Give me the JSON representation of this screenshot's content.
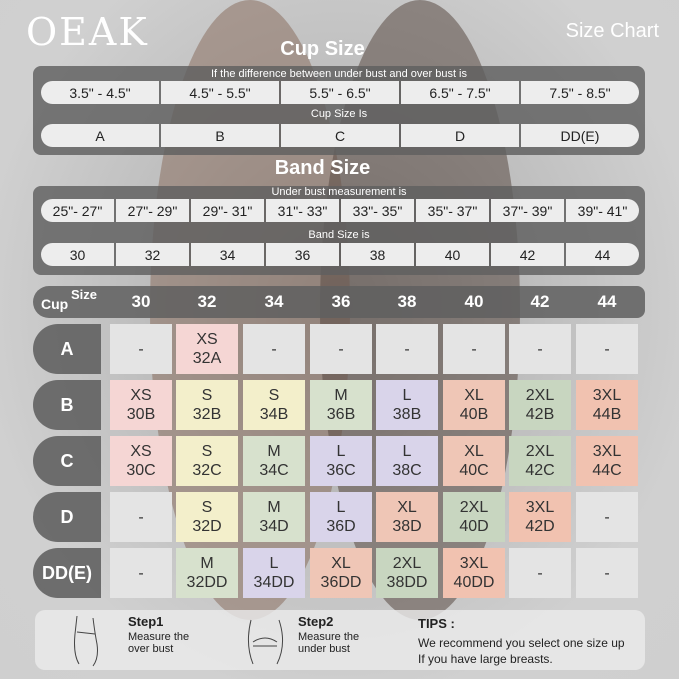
{
  "brand": {
    "logo": "OEAK",
    "subtitle": "Size Chart"
  },
  "cup_section": {
    "title": "Cup Size",
    "difference_label": "If the  difference between under bust and over bust is",
    "differences": [
      "3.5\" -  4.5\"",
      "4.5\" -  5.5\"",
      "5.5\" -  6.5\"",
      "6.5\" -  7.5\"",
      "7.5\" -  8.5\""
    ],
    "cup_label": "Cup Size Is",
    "cups": [
      "A",
      "B",
      "C",
      "D",
      "DD(E)"
    ]
  },
  "band_section": {
    "title": "Band Size",
    "measure_label": "Under bust measurement is",
    "measures": [
      "25\"- 27\"",
      "27\"- 29\"",
      "29\"- 31\"",
      "31\"- 33\"",
      "33\"- 35\"",
      "35\"- 37\"",
      "37\"- 39\"",
      "39\"- 41\""
    ],
    "band_label": "Band Size is",
    "bands": [
      "30",
      "32",
      "34",
      "36",
      "38",
      "40",
      "42",
      "44"
    ]
  },
  "matrix": {
    "corner_cup": "Cup",
    "corner_size": "Size",
    "columns": [
      "30",
      "32",
      "34",
      "36",
      "38",
      "40",
      "42",
      "44"
    ],
    "rows": [
      {
        "cup": "A",
        "cells": [
          [
            "-",
            ""
          ],
          [
            "XS",
            "32A"
          ],
          [
            "-",
            ""
          ],
          [
            "-",
            ""
          ],
          [
            "-",
            ""
          ],
          [
            "-",
            ""
          ],
          [
            "-",
            ""
          ],
          [
            "-",
            ""
          ]
        ]
      },
      {
        "cup": "B",
        "cells": [
          [
            "XS",
            "30B"
          ],
          [
            "S",
            "32B"
          ],
          [
            "S",
            "34B"
          ],
          [
            "M",
            "36B"
          ],
          [
            "L",
            "38B"
          ],
          [
            "XL",
            "40B"
          ],
          [
            "2XL",
            "42B"
          ],
          [
            "3XL",
            "44B"
          ]
        ]
      },
      {
        "cup": "C",
        "cells": [
          [
            "XS",
            "30C"
          ],
          [
            "S",
            "32C"
          ],
          [
            "M",
            "34C"
          ],
          [
            "L",
            "36C"
          ],
          [
            "L",
            "38C"
          ],
          [
            "XL",
            "40C"
          ],
          [
            "2XL",
            "42C"
          ],
          [
            "3XL",
            "44C"
          ]
        ]
      },
      {
        "cup": "D",
        "cells": [
          [
            "-",
            ""
          ],
          [
            "S",
            "32D"
          ],
          [
            "M",
            "34D"
          ],
          [
            "L",
            "36D"
          ],
          [
            "XL",
            "38D"
          ],
          [
            "2XL",
            "40D"
          ],
          [
            "3XL",
            "42D"
          ],
          [
            "-",
            ""
          ]
        ]
      },
      {
        "cup": "DD(E)",
        "cells": [
          [
            "-",
            ""
          ],
          [
            "M",
            "32DD"
          ],
          [
            "L",
            "34DD"
          ],
          [
            "XL",
            "36DD"
          ],
          [
            "2XL",
            "38DD"
          ],
          [
            "3XL",
            "40DD"
          ],
          [
            "-",
            ""
          ],
          [
            "-",
            ""
          ]
        ]
      }
    ],
    "colors": {
      "-": "#e4e4e4",
      "XS": "#f5d6d4",
      "S": "#f3efcb",
      "M": "#d7e1cd",
      "L": "#d9d4ea",
      "XL": "#efc6b6",
      "2XL": "#c8d6c0",
      "3XL": "#f1c2b0"
    }
  },
  "steps": [
    {
      "title": "Step1",
      "text1": "Measure the",
      "text2": "over bust",
      "icon": "measure-over-bust-icon"
    },
    {
      "title": "Step2",
      "text1": "Measure the",
      "text2": "under bust",
      "icon": "measure-under-bust-icon"
    }
  ],
  "tips": {
    "title": "TIPS :",
    "line1": "We recommend you select one size up",
    "line2": "If you have large breasts."
  }
}
